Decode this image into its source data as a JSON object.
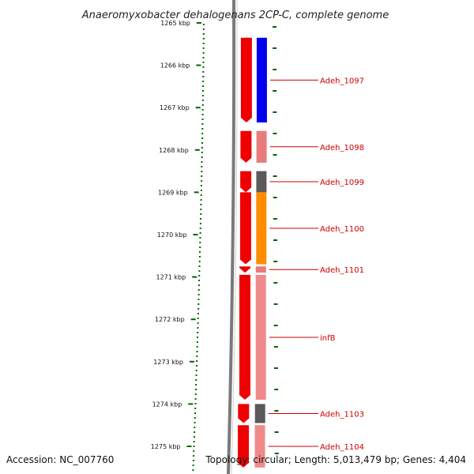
{
  "title": "Anaeromyxobacter dehalogenans 2CP-C, complete genome",
  "accession": "Accession: NC_007760",
  "topology": "Topology: circular; Length: 5,013,479 bp; Genes: 4,404",
  "ticks": [
    {
      "label": "1265 kbp",
      "kbp": 1265
    },
    {
      "label": "1266 kbp",
      "kbp": 1266
    },
    {
      "label": "1267 kbp",
      "kbp": 1267
    },
    {
      "label": "1268 kbp",
      "kbp": 1268
    },
    {
      "label": "1269 kbp",
      "kbp": 1269
    },
    {
      "label": "1270 kbp",
      "kbp": 1270
    },
    {
      "label": "1271 kbp",
      "kbp": 1271
    },
    {
      "label": "1272 kbp",
      "kbp": 1272
    },
    {
      "label": "1273 kbp",
      "kbp": 1273
    },
    {
      "label": "1274 kbp",
      "kbp": 1274
    },
    {
      "label": "1275 kbp",
      "kbp": 1275
    }
  ],
  "genes": [
    {
      "name": "Adeh_1097",
      "start_kbp": 1265.35,
      "end_kbp": 1267.35,
      "color": "#0000ee"
    },
    {
      "name": "Adeh_1098",
      "start_kbp": 1267.55,
      "end_kbp": 1268.3,
      "color": "#e87c7c"
    },
    {
      "name": "Adeh_1099",
      "start_kbp": 1268.5,
      "end_kbp": 1269.0,
      "color": "#5a5a5a"
    },
    {
      "name": "Adeh_1100",
      "start_kbp": 1269.0,
      "end_kbp": 1270.7,
      "color": "#ff8c00"
    },
    {
      "name": "Adeh_1101",
      "start_kbp": 1270.75,
      "end_kbp": 1270.9,
      "color": "#e87c7c"
    },
    {
      "name": "infB",
      "start_kbp": 1270.95,
      "end_kbp": 1273.9,
      "color": "#f08a8a"
    },
    {
      "name": "Adeh_1103",
      "start_kbp": 1274.0,
      "end_kbp": 1274.45,
      "color": "#5a5a5a"
    },
    {
      "name": "Adeh_1104",
      "start_kbp": 1274.5,
      "end_kbp": 1275.5,
      "color": "#f08a8a"
    }
  ],
  "colors": {
    "cds_track": "#ee0000",
    "backbone": "#7a7a7a",
    "gc_dots": "#006600",
    "label": "#cc0000",
    "leader": "#cc0000"
  }
}
